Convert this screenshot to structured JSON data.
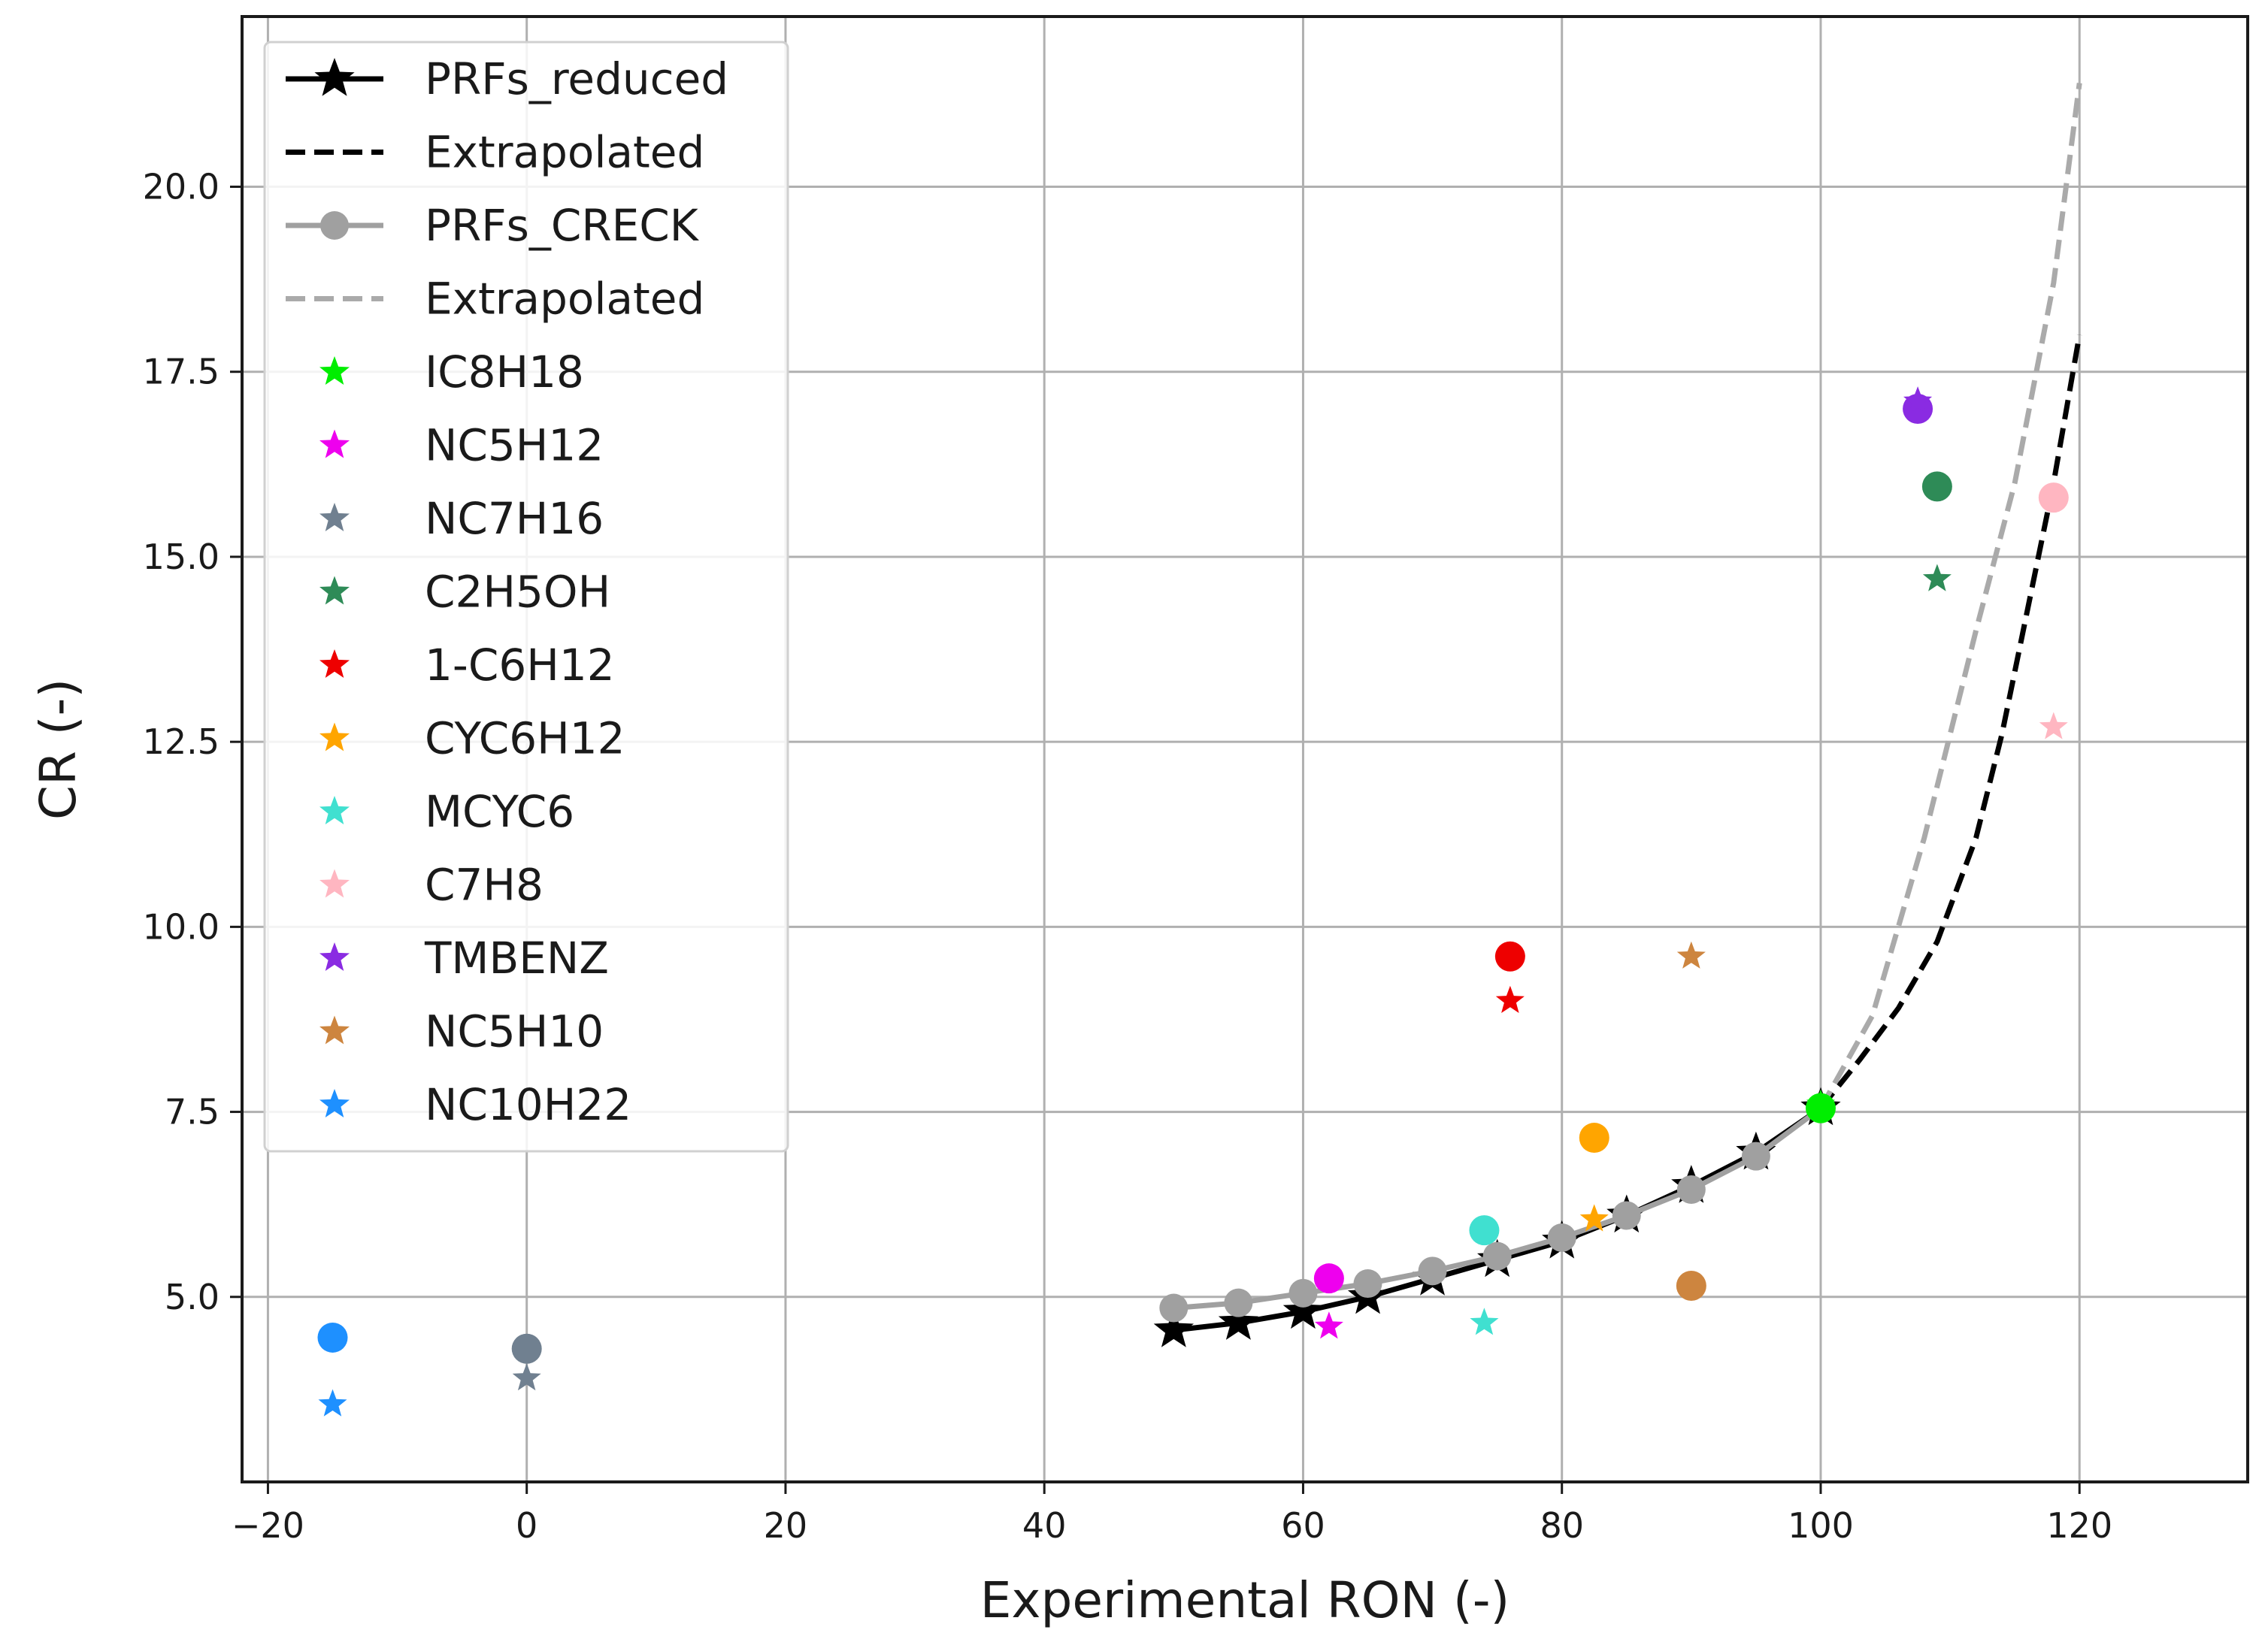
{
  "chart_data": {
    "type": "scatter",
    "title": "",
    "xlabel": "Experimental RON (-)",
    "ylabel": "CR (-)",
    "xlim": [
      -22,
      133
    ],
    "ylim": [
      2.5,
      22.3
    ],
    "xticks": [
      -20,
      0,
      20,
      40,
      60,
      80,
      100,
      120
    ],
    "xtick_labels": [
      "−20",
      "0",
      "20",
      "40",
      "60",
      "80",
      "100",
      "120"
    ],
    "yticks": [
      5.0,
      7.5,
      10.0,
      12.5,
      15.0,
      17.5,
      20.0
    ],
    "ytick_labels": [
      "5.0",
      "7.5",
      "10.0",
      "12.5",
      "15.0",
      "17.5",
      "20.0"
    ],
    "grid": true,
    "legend_position": "upper-left",
    "lines": [
      {
        "name": "PRFs_reduced",
        "color": "#000000",
        "style": "solid",
        "marker": "star",
        "x": [
          50,
          55,
          60,
          65,
          70,
          75,
          80,
          85,
          90,
          95,
          100
        ],
        "y": [
          4.55,
          4.65,
          4.8,
          5.0,
          5.25,
          5.5,
          5.75,
          6.1,
          6.5,
          6.95,
          7.55
        ]
      },
      {
        "name": "Extrapolated",
        "color": "#000000",
        "style": "dashed",
        "marker": "none",
        "x": [
          100,
          103,
          106,
          109,
          112,
          114,
          116,
          118,
          120
        ],
        "y": [
          7.55,
          8.2,
          8.9,
          9.8,
          11.2,
          12.6,
          14.3,
          16.0,
          18.0
        ]
      },
      {
        "name": "PRFs_CRECK",
        "color": "#a0a0a0",
        "style": "solid",
        "marker": "circle",
        "x": [
          50,
          55,
          60,
          65,
          70,
          75,
          80,
          85,
          90,
          95,
          100
        ],
        "y": [
          4.85,
          4.92,
          5.05,
          5.18,
          5.35,
          5.55,
          5.8,
          6.1,
          6.45,
          6.9,
          7.55
        ]
      },
      {
        "name": "Extrapolated",
        "color": "#aaaaaa",
        "style": "dashed",
        "marker": "none",
        "x": [
          100,
          104,
          108,
          112,
          115,
          118,
          120
        ],
        "y": [
          7.55,
          8.8,
          11.2,
          14.0,
          16.0,
          18.7,
          21.4
        ]
      }
    ],
    "fuels": [
      {
        "name": "IC8H18",
        "color": "#00ee00",
        "x": 100,
        "y_star": 7.6,
        "y_circle": 7.55
      },
      {
        "name": "NC5H12",
        "color": "#ee00ee",
        "x": 62,
        "y_star": 4.6,
        "y_circle": 5.25
      },
      {
        "name": "NC7H16",
        "color": "#708090",
        "x": 0,
        "y_star": 3.9,
        "y_circle": 4.3
      },
      {
        "name": "C2H5OH",
        "color": "#2e8b57",
        "x": 109,
        "y_star": 14.7,
        "y_circle": 15.95
      },
      {
        "name": "1-C6H12",
        "color": "#ee0000",
        "x": 76,
        "y_star": 9.0,
        "y_circle": 9.6
      },
      {
        "name": "CYC6H12",
        "color": "#ffa500",
        "x": 82.5,
        "y_star": 6.05,
        "y_circle": 7.15
      },
      {
        "name": "MCYC6",
        "color": "#40e0d0",
        "x": 74,
        "y_star": 4.65,
        "y_circle": 5.9
      },
      {
        "name": "C7H8",
        "color": "#ffb6c1",
        "x": 118,
        "y_star": 12.7,
        "y_circle": 15.8
      },
      {
        "name": "TMBENZ",
        "color": "#8a2be2",
        "x": 107.5,
        "y_star": 17.1,
        "y_circle": 17.0
      },
      {
        "name": "NC5H10",
        "color": "#cd853f",
        "x": 90,
        "y_star": 9.6,
        "y_circle": 5.15
      },
      {
        "name": "NC10H22",
        "color": "#1e90ff",
        "x": -15,
        "y_star": 3.55,
        "y_circle": 4.45
      }
    ]
  }
}
